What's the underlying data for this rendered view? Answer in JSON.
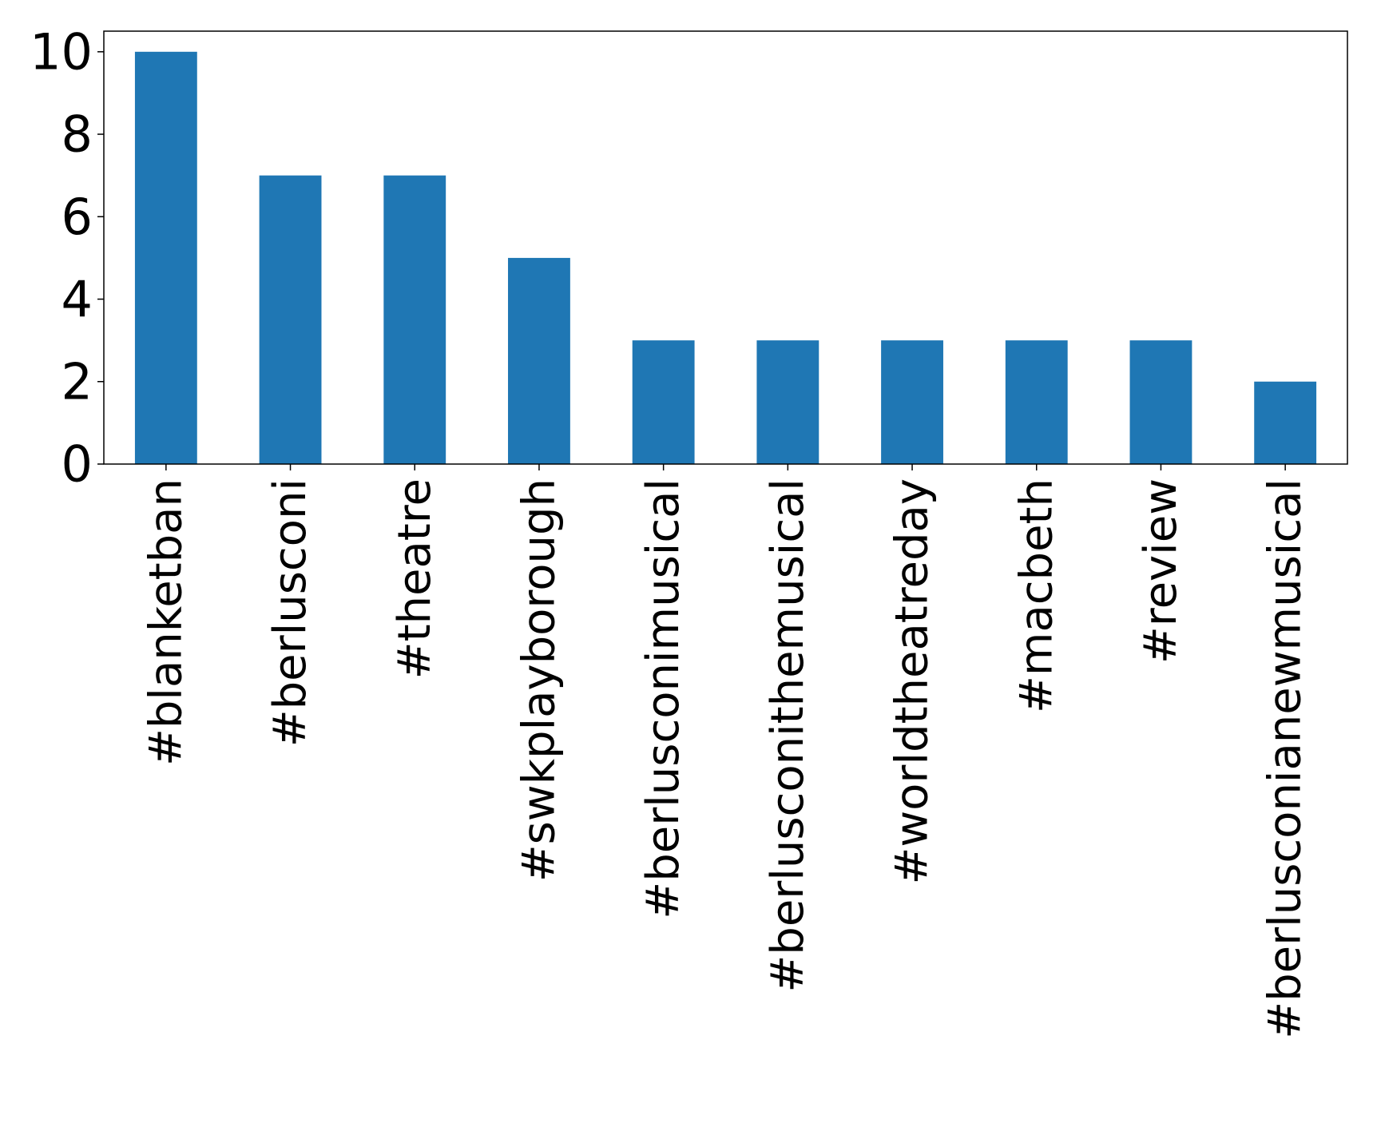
{
  "chart_data": {
    "type": "bar",
    "categories": [
      "#blanketban",
      "#berlusconi",
      "#theatre",
      "#swkplayborough",
      "#berlusconimusical",
      "#berlusconithemusical",
      "#worldtheatreday",
      "#macbeth",
      "#review",
      "#berlusconianewmusical"
    ],
    "values": [
      10,
      7,
      7,
      5,
      3,
      3,
      3,
      3,
      3,
      2
    ],
    "color": "#1f77b4",
    "ylim": [
      0,
      10.5
    ],
    "yticks": [
      0,
      2,
      4,
      6,
      8,
      10
    ],
    "grid": false
  }
}
